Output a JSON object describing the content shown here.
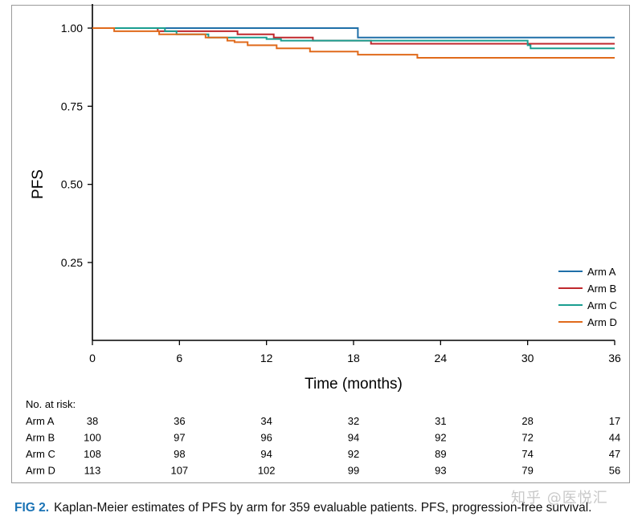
{
  "chart_data": {
    "type": "line",
    "step": true,
    "title": "",
    "xlabel": "Time (months)",
    "ylabel": "PFS",
    "xlim": [
      0,
      36
    ],
    "ylim": [
      0,
      1.0
    ],
    "xticks": [
      "0",
      "6",
      "12",
      "18",
      "24",
      "30",
      "36"
    ],
    "yticks": [
      "0.25",
      "0.50",
      "0.75",
      "1.00"
    ],
    "grid": false,
    "legend_position": "bottom-right",
    "series": [
      {
        "name": "Arm A",
        "color": "#1f6fa8",
        "x": [
          0,
          18.3,
          18.3,
          36
        ],
        "y": [
          1.0,
          1.0,
          0.97,
          0.97
        ]
      },
      {
        "name": "Arm B",
        "color": "#c0282d",
        "x": [
          0,
          4.5,
          4.5,
          10,
          10,
          12.5,
          12.5,
          15.2,
          15.2,
          19.2,
          19.2,
          36
        ],
        "y": [
          1.0,
          1.0,
          0.99,
          0.99,
          0.98,
          0.98,
          0.97,
          0.97,
          0.96,
          0.96,
          0.95,
          0.95
        ]
      },
      {
        "name": "Arm C",
        "color": "#1a9e90",
        "x": [
          0,
          5.0,
          5.0,
          5.8,
          5.8,
          8.0,
          8.0,
          12.0,
          12.0,
          13.0,
          13.0,
          30.0,
          30.0,
          30.2,
          30.2,
          36
        ],
        "y": [
          1.0,
          1.0,
          0.99,
          0.99,
          0.98,
          0.98,
          0.97,
          0.97,
          0.965,
          0.965,
          0.96,
          0.96,
          0.945,
          0.945,
          0.935,
          0.935
        ]
      },
      {
        "name": "Arm D",
        "color": "#e06a1b",
        "x": [
          0,
          1.5,
          1.5,
          4.6,
          4.6,
          7.8,
          7.8,
          9.3,
          9.3,
          9.8,
          9.8,
          10.7,
          10.7,
          12.7,
          12.7,
          15.0,
          15.0,
          18.3,
          18.3,
          22.4,
          22.4,
          36
        ],
        "y": [
          1.0,
          1.0,
          0.99,
          0.99,
          0.98,
          0.98,
          0.97,
          0.97,
          0.96,
          0.96,
          0.955,
          0.955,
          0.945,
          0.945,
          0.935,
          0.935,
          0.925,
          0.925,
          0.915,
          0.915,
          0.905,
          0.905
        ]
      }
    ]
  },
  "risk_table": {
    "title": "No. at risk:",
    "times": [
      0,
      6,
      12,
      18,
      24,
      30,
      36
    ],
    "rows": [
      {
        "label": "Arm A",
        "counts": [
          "38",
          "36",
          "34",
          "32",
          "31",
          "28",
          "17"
        ]
      },
      {
        "label": "Arm B",
        "counts": [
          "100",
          "97",
          "96",
          "94",
          "92",
          "72",
          "44"
        ]
      },
      {
        "label": "Arm C",
        "counts": [
          "108",
          "98",
          "94",
          "92",
          "89",
          "74",
          "47"
        ]
      },
      {
        "label": "Arm D",
        "counts": [
          "113",
          "107",
          "102",
          "99",
          "93",
          "79",
          "56"
        ]
      }
    ]
  },
  "caption": {
    "label": "FIG 2.",
    "text": "Kaplan-Meier estimates of PFS by arm for 359 evaluable patients. PFS, progression-free survival."
  },
  "watermark": "知乎 @医悦汇"
}
